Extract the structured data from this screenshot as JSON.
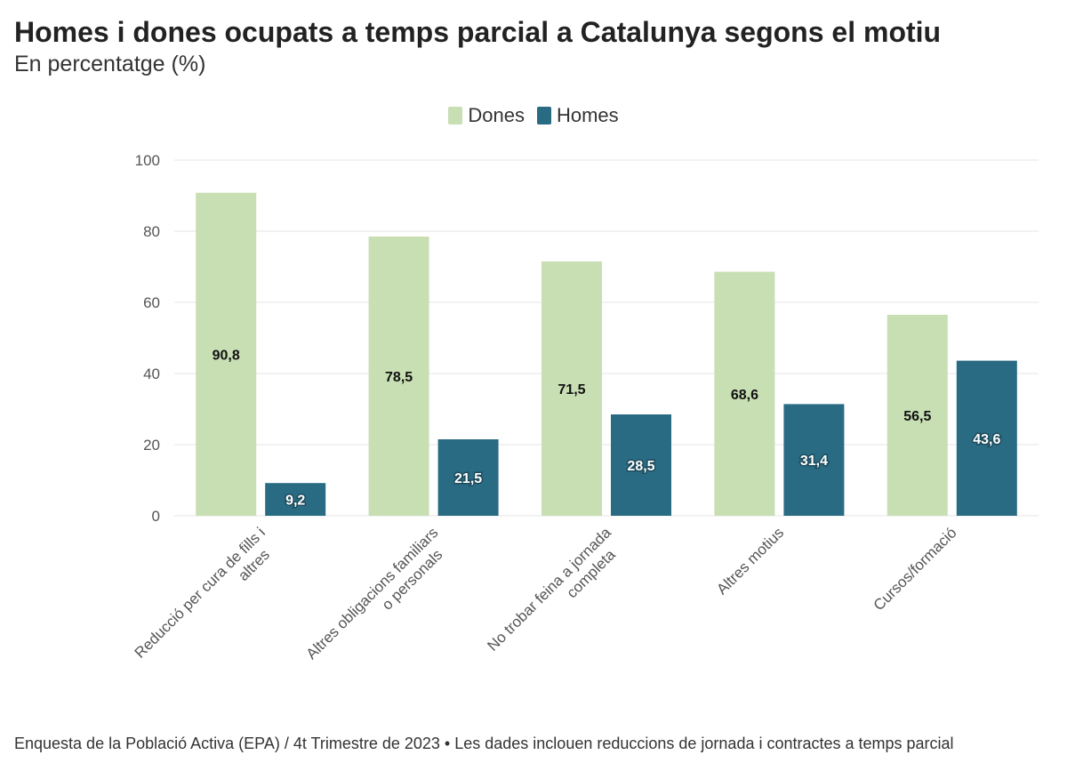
{
  "title": "Homes i dones ocupats a temps parcial a Catalunya segons el motiu",
  "subtitle": "En percentatge (%)",
  "footer": "Enquesta de la Població Activa (EPA) / 4t Trimestre de 2023 • Les dades inclouen reduccions de jornada i contractes a temps parcial",
  "colors": {
    "dones": "#c8dfb4",
    "homes": "#2a6b84",
    "grid": "#e6e6e6",
    "axis_text": "#555555"
  },
  "chart_data": {
    "type": "bar",
    "title": "Homes i dones ocupats a temps parcial a Catalunya segons el motiu",
    "subtitle": "En percentatge (%)",
    "categories": [
      [
        "Reducció per cura de fills i",
        "altres"
      ],
      [
        "Altres obligacions familiars",
        "o personals"
      ],
      [
        "No trobar feina a jornada",
        "completa"
      ],
      [
        "Altres motius"
      ],
      [
        "Cursos/formació"
      ]
    ],
    "series": [
      {
        "name": "Dones",
        "values": [
          90.8,
          78.5,
          71.5,
          68.6,
          56.5
        ],
        "labels": [
          "90,8",
          "78,5",
          "71,5",
          "68,6",
          "56,5"
        ]
      },
      {
        "name": "Homes",
        "values": [
          9.2,
          21.5,
          28.5,
          31.4,
          43.6
        ],
        "labels": [
          "9,2",
          "21,5",
          "28,5",
          "31,4",
          "43,6"
        ]
      }
    ],
    "ylim": [
      0,
      100
    ],
    "yticks": [
      0,
      20,
      40,
      60,
      80,
      100
    ],
    "xlabel": "",
    "ylabel": "",
    "grid": true,
    "legend_position": "top-center"
  }
}
